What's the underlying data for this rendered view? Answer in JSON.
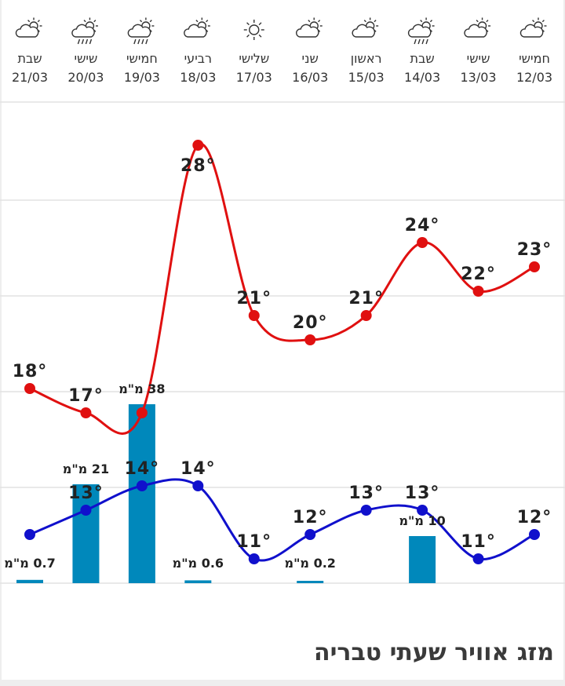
{
  "chart_data": {
    "type": "line",
    "days": [
      {
        "name": "שבת",
        "date": "21/03",
        "icon": "partly-cloudy-icon"
      },
      {
        "name": "שישי",
        "date": "20/03",
        "icon": "rain-cloud-icon"
      },
      {
        "name": "חמישי",
        "date": "19/03",
        "icon": "rain-cloud-icon"
      },
      {
        "name": "רביעי",
        "date": "18/03",
        "icon": "partly-cloudy-icon"
      },
      {
        "name": "שלישי",
        "date": "17/03",
        "icon": "sun-icon"
      },
      {
        "name": "שני",
        "date": "16/03",
        "icon": "partly-cloudy-icon"
      },
      {
        "name": "ראשון",
        "date": "15/03",
        "icon": "partly-cloudy-icon"
      },
      {
        "name": "שבת",
        "date": "14/03",
        "icon": "rain-cloud-icon"
      },
      {
        "name": "שישי",
        "date": "13/03",
        "icon": "partly-cloudy-icon"
      },
      {
        "name": "חמישי",
        "date": "12/03",
        "icon": "partly-cloudy-icon"
      }
    ],
    "series": [
      {
        "key": "max",
        "values": [
          18,
          17,
          17,
          28,
          21,
          20,
          21,
          24,
          22,
          23
        ],
        "labels": [
          "18°",
          "17°",
          "",
          "28°",
          "21°",
          "20°",
          "21°",
          "24°",
          "22°",
          "23°"
        ]
      },
      {
        "key": "min",
        "values": [
          12,
          13,
          14,
          14,
          11,
          12,
          13,
          13,
          11,
          12
        ],
        "labels": [
          "",
          "13°",
          "14°",
          "14°",
          "11°",
          "12°",
          "13°",
          "13°",
          "11°",
          "12°"
        ]
      }
    ],
    "rain": {
      "values": [
        0.7,
        21,
        38,
        0.6,
        0,
        0.2,
        0,
        10,
        0,
        0
      ],
      "labels": [
        "0.7 מ\"מ",
        "21 מ\"מ",
        "38 מ\"מ",
        "0.6 מ\"מ",
        "",
        "0.2 מ\"מ",
        "",
        "10 מ\"מ",
        "",
        ""
      ]
    },
    "temp_range": [
      10,
      29.5
    ],
    "rain_range": [
      0,
      38
    ],
    "grid": true,
    "colors": {
      "max": "#e01010",
      "min": "#1010cc",
      "rain": "#0088bb",
      "grid": "#e2e2e2",
      "text": "#222222"
    }
  },
  "section_title": "מזג אוויר שעתי טבריה"
}
